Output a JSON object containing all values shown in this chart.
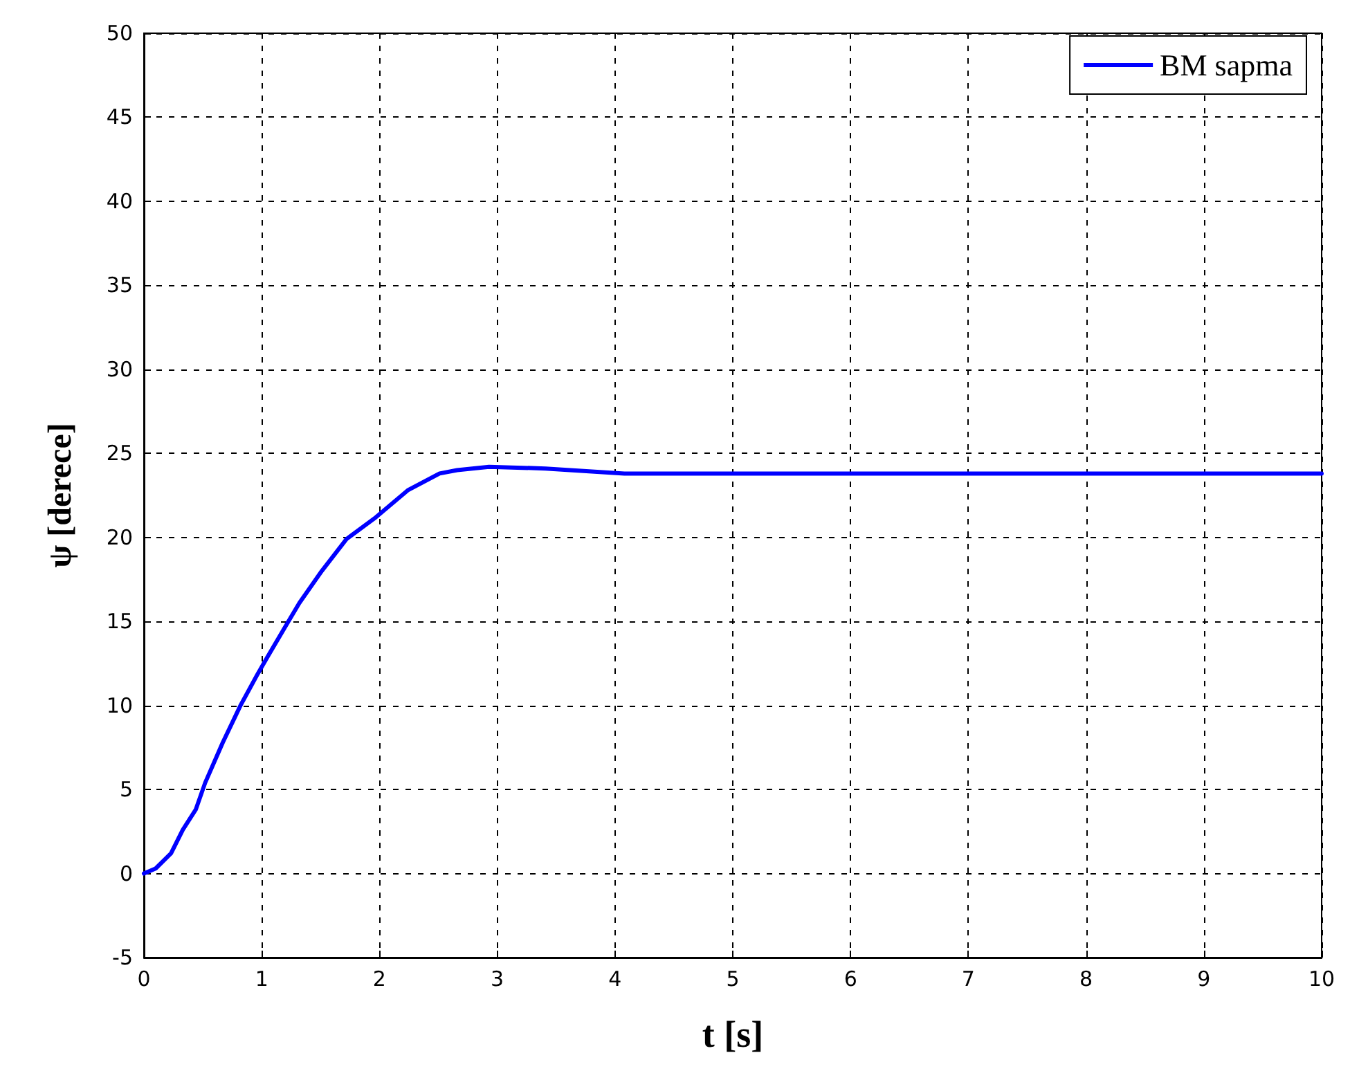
{
  "chart_data": {
    "type": "line",
    "xlabel": "t [s]",
    "ylabel": "ψ [derece]",
    "xlim": [
      0,
      10
    ],
    "xticks": [
      0,
      1,
      2,
      3,
      4,
      5,
      6,
      7,
      8,
      9,
      10
    ],
    "ylim": [
      -5,
      50
    ],
    "yticks": [
      -5,
      0,
      5,
      10,
      15,
      20,
      25,
      30,
      35,
      40,
      45,
      50
    ],
    "grid": true,
    "legend": "top right",
    "line_style": "solid",
    "marker": "none",
    "series": [
      {
        "name": "BM sapma",
        "color": "#0000ff",
        "x": [
          0,
          0.1,
          0.23,
          0.33,
          0.44,
          0.52,
          0.67,
          0.82,
          0.96,
          1.05,
          1.21,
          1.32,
          1.51,
          1.72,
          1.97,
          2.24,
          2.51,
          2.66,
          2.93,
          3.41,
          4.08,
          5,
          6,
          7,
          8,
          9,
          10
        ],
        "values": [
          0,
          0.3,
          1.2,
          2.6,
          3.8,
          5.4,
          7.8,
          10,
          11.8,
          12.9,
          14.8,
          16.1,
          18,
          19.9,
          21.2,
          22.8,
          23.8,
          24,
          24.2,
          24.1,
          23.8,
          23.8,
          23.8,
          23.8,
          23.8,
          23.8,
          23.8
        ]
      }
    ]
  }
}
